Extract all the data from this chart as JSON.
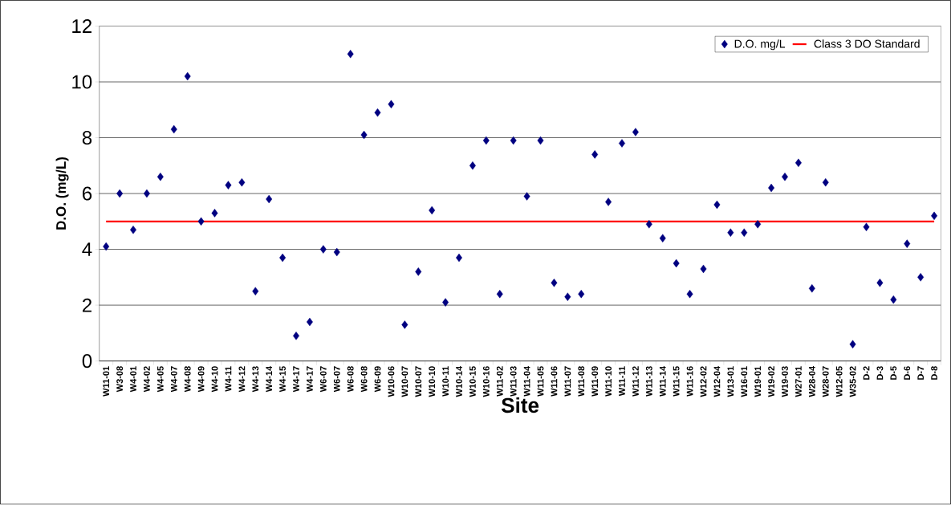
{
  "chart_data": {
    "type": "scatter",
    "xlabel": "Site",
    "ylabel": "D.O. (mg/L)",
    "categories": [
      "W11-01",
      "W3-08",
      "W4-01",
      "W4-02",
      "W4-05",
      "W4-07",
      "W4-08",
      "W4-09",
      "W4-10",
      "W4-11",
      "W4-12",
      "W4-13",
      "W4-14",
      "W4-15",
      "W4-17",
      "W4-17",
      "W6-07",
      "W6-07",
      "W6-08",
      "W6-08",
      "W6-09",
      "W10-06",
      "W10-07",
      "W10-07",
      "W10-10",
      "W10-11",
      "W10-14",
      "W10-15",
      "W10-16",
      "W11-02",
      "W11-03",
      "W11-04",
      "W11-05",
      "W11-06",
      "W11-07",
      "W11-08",
      "W11-09",
      "W11-10",
      "W11-11",
      "W11-12",
      "W11-13",
      "W11-14",
      "W11-15",
      "W11-16",
      "W12-02",
      "W12-04",
      "W13-01",
      "W16-01",
      "W19-01",
      "W19-02",
      "W19-03",
      "W27-01",
      "W28-04",
      "W28-07",
      "W12-05",
      "W35-02",
      "D-2",
      "D-3",
      "D-5",
      "D-6",
      "D-7",
      "D-8"
    ],
    "series": [
      {
        "name": "D.O. mg/L",
        "color": "#000080",
        "values": [
          4.1,
          6.0,
          4.7,
          6.0,
          6.6,
          8.3,
          10.2,
          5.0,
          5.3,
          6.3,
          6.4,
          2.5,
          5.8,
          3.7,
          0.9,
          1.4,
          4.0,
          3.9,
          11.0,
          8.1,
          8.9,
          9.2,
          1.3,
          3.2,
          5.4,
          2.1,
          3.7,
          7.0,
          7.9,
          2.4,
          7.9,
          5.9,
          7.9,
          2.8,
          2.3,
          2.4,
          7.4,
          5.7,
          7.8,
          8.2,
          4.9,
          4.4,
          3.5,
          2.4,
          3.3,
          5.6,
          4.6,
          4.6,
          4.9,
          6.2,
          6.6,
          7.1,
          2.6,
          6.4,
          null,
          0.6,
          4.8,
          2.8,
          2.2,
          4.2,
          3.0,
          5.2
        ]
      }
    ],
    "ref_lines": [
      {
        "axis": "y",
        "value": 5,
        "label": "Class 3 DO Standard",
        "color": "#ff0000"
      }
    ],
    "ylim": [
      0,
      12
    ],
    "yticks": [
      0,
      2,
      4,
      6,
      8,
      10,
      12
    ],
    "grid": "y",
    "legend": "top right",
    "marker": "diamond"
  }
}
